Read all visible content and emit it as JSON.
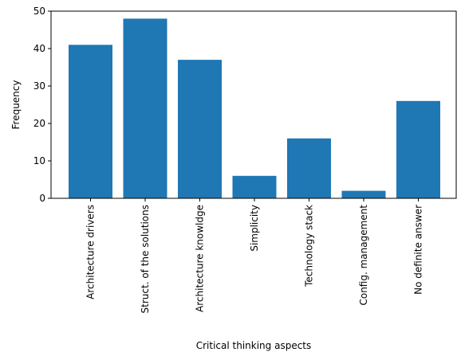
{
  "chart_data": {
    "type": "bar",
    "categories": [
      "Architecture drivers",
      "Struct. of the solutions",
      "Architecture knowldge",
      "Simplicity",
      "Technology stack",
      "Config. management",
      "No definite answer"
    ],
    "values": [
      41,
      48,
      37,
      6,
      16,
      2,
      26
    ],
    "xlabel": "Critical thinking aspects",
    "ylabel": "Frequency",
    "ylim": [
      0,
      50
    ],
    "yticks": [
      0,
      10,
      20,
      30,
      40,
      50
    ],
    "bar_color": "#1f77b4",
    "grid": false,
    "legend": "none"
  }
}
